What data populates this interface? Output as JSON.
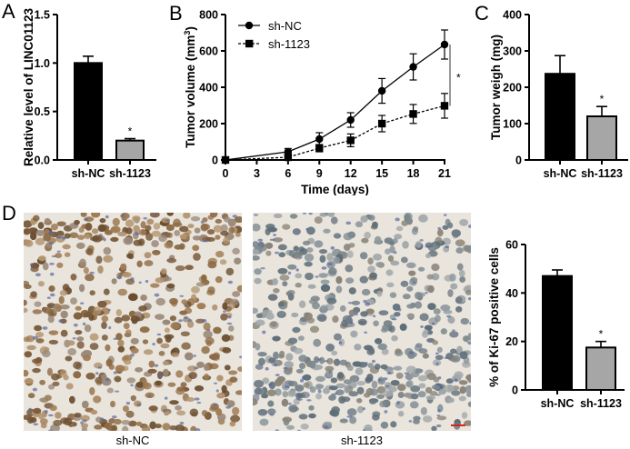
{
  "panels": {
    "A": {
      "label": "A"
    },
    "B": {
      "label": "B"
    },
    "C": {
      "label": "C"
    },
    "D": {
      "label": "D"
    }
  },
  "micrographs": [
    {
      "caption": "sh-NC",
      "tone": "#a88a64"
    },
    {
      "caption": "sh-1123",
      "tone": "#9aa3a6"
    }
  ],
  "significance_marker": "*",
  "chart_data": [
    {
      "panel": "A",
      "type": "bar",
      "title": "",
      "xlabel": "",
      "ylabel": "Relative level of LINC01123",
      "categories": [
        "sh-NC",
        "sh-1123"
      ],
      "values": [
        1.0,
        0.2
      ],
      "errors": [
        0.07,
        0.02
      ],
      "colors": [
        "#000000",
        "#a6a6a6"
      ],
      "significance": [
        "",
        "*"
      ],
      "ylim": [
        0,
        1.5
      ],
      "yticks": [
        0.0,
        0.5,
        1.0,
        1.5
      ],
      "ytick_labels": [
        "0.0",
        "0.5",
        "1.0",
        "1.5"
      ],
      "grid": false
    },
    {
      "panel": "B",
      "type": "line",
      "title": "",
      "xlabel": "Time (days)",
      "ylabel": "Tumor volume (mm3)",
      "x": [
        0,
        6,
        9,
        12,
        15,
        18,
        21
      ],
      "xticks": [
        0,
        3,
        6,
        9,
        12,
        15,
        18,
        21
      ],
      "yticks": [
        0,
        200,
        400,
        600,
        800
      ],
      "xlim": [
        0,
        21
      ],
      "ylim": [
        0,
        800
      ],
      "series": [
        {
          "name": "sh-NC",
          "marker": "circle",
          "line": "solid",
          "values": [
            0,
            45,
            115,
            220,
            380,
            512,
            635
          ],
          "errors": [
            0,
            18,
            35,
            40,
            68,
            72,
            80
          ]
        },
        {
          "name": "sh-1123",
          "marker": "square",
          "line": "dashed",
          "values": [
            0,
            15,
            65,
            108,
            200,
            253,
            298
          ],
          "errors": [
            0,
            10,
            20,
            35,
            45,
            52,
            68
          ]
        }
      ],
      "legend_position": "upper-left",
      "annotations": [
        {
          "text": "*",
          "between_series_at_x": 21
        }
      ],
      "grid": false
    },
    {
      "panel": "C",
      "type": "bar",
      "title": "",
      "xlabel": "",
      "ylabel": "Tumor weigh (mg)",
      "categories": [
        "sh-NC",
        "sh-1123"
      ],
      "values": [
        237,
        120
      ],
      "errors": [
        50,
        27
      ],
      "colors": [
        "#000000",
        "#a6a6a6"
      ],
      "significance": [
        "",
        "*"
      ],
      "ylim": [
        0,
        400
      ],
      "yticks": [
        0,
        100,
        200,
        300,
        400
      ],
      "grid": false
    },
    {
      "panel": "D",
      "type": "bar",
      "title": "",
      "xlabel": "",
      "ylabel": "% of Ki-67 positive cells",
      "categories": [
        "sh-NC",
        "sh-1123"
      ],
      "values": [
        47,
        17.5
      ],
      "errors": [
        2.5,
        2.5
      ],
      "colors": [
        "#000000",
        "#a6a6a6"
      ],
      "significance": [
        "",
        "*"
      ],
      "ylim": [
        0,
        60
      ],
      "yticks": [
        0,
        20,
        40,
        60
      ],
      "grid": false
    }
  ]
}
